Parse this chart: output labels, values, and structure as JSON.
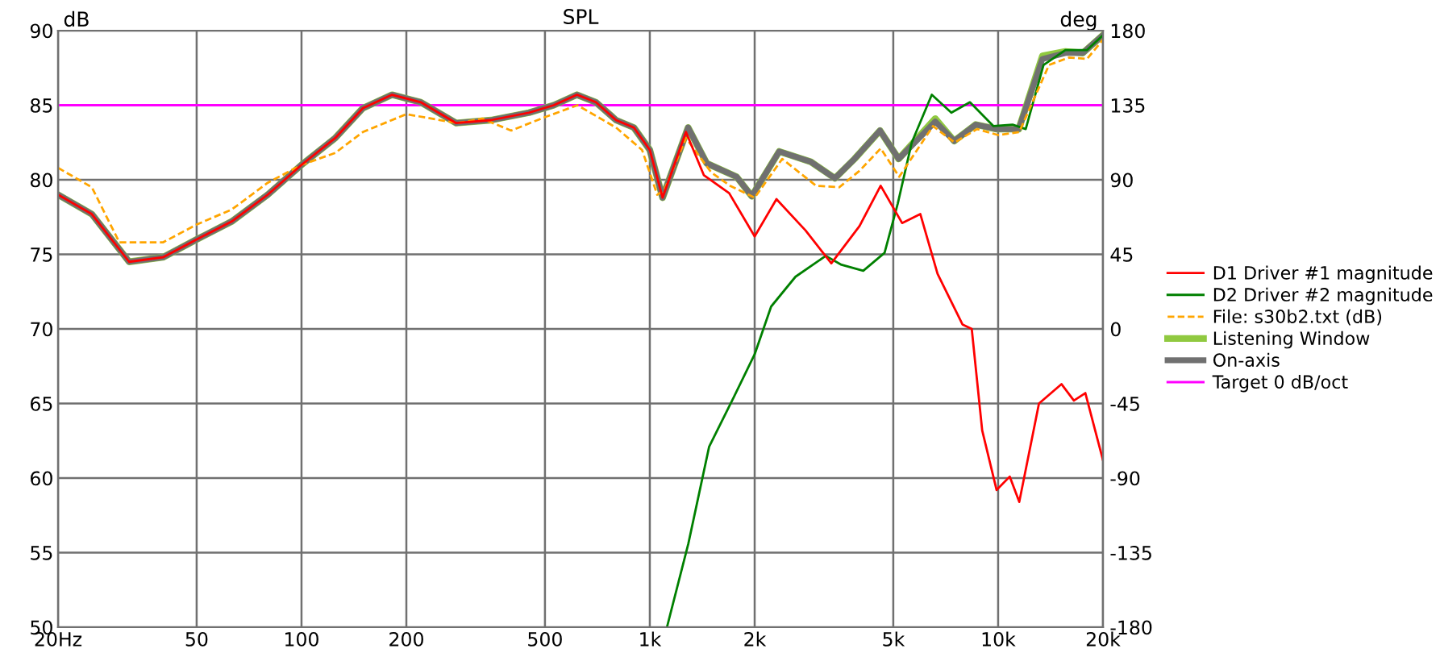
{
  "chart_data": {
    "type": "line",
    "title": "SPL",
    "ylabel": "dB",
    "y2label": "deg",
    "log": "x",
    "xlim": [
      20,
      20000
    ],
    "xticks": [
      {
        "value": 20,
        "label": "20Hz"
      },
      50,
      100,
      200,
      500,
      {
        "value": 1000,
        "label": "1k"
      },
      {
        "value": 2000,
        "label": "2k"
      },
      {
        "value": 5000,
        "label": "5k"
      },
      {
        "value": 10000,
        "label": "10k"
      },
      {
        "value": 20000,
        "label": "20k"
      }
    ],
    "ylim": [
      50,
      90
    ],
    "yticks": [
      50,
      55,
      60,
      65,
      70,
      75,
      80,
      85,
      90
    ],
    "y2lim": [
      -180,
      180
    ],
    "y2ticks": [
      -180,
      -135,
      -90,
      -45,
      0,
      45,
      90,
      135,
      180
    ],
    "grid": true,
    "legend": "right",
    "marker": "none",
    "series": [
      {
        "name": "Target 0 dB/oct",
        "color": "#ff00ff",
        "line_style": "solid",
        "x": [
          20,
          20000
        ],
        "values": [
          85,
          85
        ]
      },
      {
        "name": "Listening Window",
        "color": "#90c940",
        "line_style": "solid",
        "x": [
          20,
          25,
          32,
          40,
          50,
          63,
          80,
          100,
          125,
          150,
          182,
          220,
          278,
          350,
          450,
          530,
          618,
          700,
          800,
          900,
          1000,
          1088,
          1288,
          1457,
          1774,
          1962,
          2352,
          2900,
          3400,
          3870,
          4580,
          5180,
          6600,
          7480,
          8620,
          9900,
          11460,
          13400,
          15600,
          17500,
          20000
        ],
        "values": [
          79.0,
          77.7,
          74.5,
          74.8,
          76.0,
          77.2,
          79.0,
          81.0,
          82.8,
          84.8,
          85.7,
          85.2,
          83.8,
          84.0,
          84.5,
          85.0,
          85.7,
          85.2,
          84.0,
          83.5,
          82.0,
          78.8,
          83.5,
          81.1,
          80.2,
          78.9,
          81.9,
          81.2,
          80.1,
          81.4,
          83.3,
          81.4,
          84.1,
          82.6,
          83.7,
          83.4,
          83.4,
          88.3,
          88.6,
          88.5,
          89.7
        ]
      },
      {
        "name": "On-axis",
        "color": "#707070",
        "line_style": "solid",
        "x": [
          20,
          25,
          32,
          40,
          50,
          63,
          80,
          100,
          125,
          150,
          182,
          220,
          278,
          350,
          450,
          530,
          618,
          700,
          800,
          900,
          1000,
          1088,
          1288,
          1457,
          1774,
          1962,
          2352,
          2900,
          3400,
          3870,
          4580,
          5180,
          6600,
          7480,
          8620,
          9900,
          11460,
          13400,
          15600,
          17500,
          20000
        ],
        "values": [
          79.0,
          77.7,
          74.5,
          74.8,
          76.0,
          77.2,
          79.0,
          81.0,
          82.8,
          84.8,
          85.7,
          85.2,
          83.8,
          84.0,
          84.5,
          85.0,
          85.7,
          85.2,
          84.0,
          83.5,
          82.0,
          78.8,
          83.5,
          81.1,
          80.2,
          78.9,
          81.9,
          81.2,
          80.1,
          81.4,
          83.3,
          81.4,
          83.9,
          82.6,
          83.7,
          83.4,
          83.4,
          88.1,
          88.5,
          88.5,
          89.7
        ]
      },
      {
        "name": "D2 Driver #2 magnitude",
        "color": "#008000",
        "line_style": "solid",
        "x": [
          1120,
          1290,
          1480,
          1740,
          2000,
          2230,
          2620,
          3200,
          3550,
          4100,
          4720,
          5150,
          5650,
          6450,
          7340,
          8300,
          9700,
          11000,
          12000,
          13500,
          15600,
          18000,
          20000
        ],
        "values": [
          50.0,
          55.6,
          62.1,
          65.4,
          68.3,
          71.5,
          73.5,
          74.9,
          74.3,
          73.9,
          75.1,
          78.4,
          82.5,
          85.7,
          84.5,
          85.2,
          83.6,
          83.7,
          83.4,
          87.7,
          88.7,
          88.7,
          89.7
        ]
      },
      {
        "name": "File: s30b2.txt (dB)",
        "color": "#ffa500",
        "line_style": "dashed",
        "x": [
          20,
          25,
          30,
          40,
          50,
          63,
          80,
          100,
          125,
          150,
          200,
          280,
          330,
          400,
          500,
          620,
          800,
          950,
          1050,
          1100,
          1270,
          1500,
          1700,
          2000,
          2400,
          3000,
          3500,
          4000,
          4600,
          5200,
          6500,
          7500,
          8700,
          10000,
          11500,
          14000,
          16000,
          18000,
          20000
        ],
        "values": [
          80.8,
          79.5,
          75.8,
          75.8,
          77.0,
          78.0,
          79.8,
          81.0,
          81.8,
          83.2,
          84.4,
          83.8,
          84.1,
          83.3,
          84.2,
          85.0,
          83.5,
          82.0,
          79.0,
          79.3,
          82.8,
          80.5,
          79.6,
          78.8,
          81.4,
          79.6,
          79.5,
          80.6,
          82.1,
          80.2,
          83.6,
          82.5,
          83.4,
          83.0,
          83.2,
          87.7,
          88.2,
          88.1,
          89.4
        ]
      },
      {
        "name": "D1 Driver #1 magnitude",
        "color": "#ff0000",
        "line_style": "solid",
        "x": [
          20,
          25,
          32,
          40,
          50,
          63,
          80,
          100,
          125,
          150,
          182,
          220,
          278,
          350,
          450,
          530,
          618,
          700,
          800,
          900,
          1000,
          1088,
          1270,
          1430,
          1690,
          2000,
          2310,
          2800,
          3320,
          4000,
          4600,
          5300,
          5980,
          6700,
          7900,
          8400,
          9000,
          9900,
          10800,
          11500,
          13100,
          15200,
          16500,
          17800,
          20000
        ],
        "values": [
          79.0,
          77.7,
          74.5,
          74.8,
          76.0,
          77.2,
          79.0,
          81.0,
          82.8,
          84.8,
          85.7,
          85.2,
          83.8,
          84.0,
          84.5,
          85.0,
          85.7,
          85.2,
          84.0,
          83.5,
          82.0,
          78.8,
          83.2,
          80.3,
          79.1,
          76.2,
          78.7,
          76.6,
          74.4,
          76.9,
          79.6,
          77.1,
          77.7,
          73.7,
          70.3,
          70.0,
          63.2,
          59.2,
          60.1,
          58.4,
          65.0,
          66.3,
          65.2,
          65.7,
          61.2
        ]
      }
    ]
  }
}
